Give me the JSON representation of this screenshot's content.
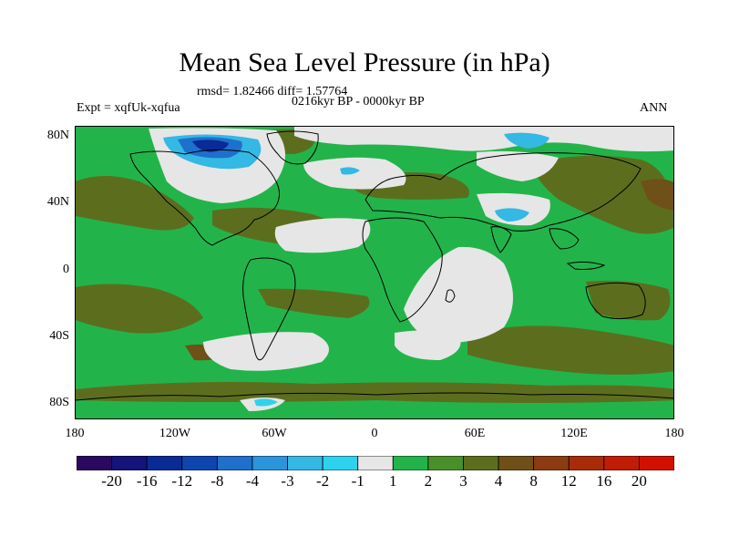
{
  "title": "Mean Sea Level Pressure (in hPa)",
  "stats": "rmsd= 1.82466 diff= 1.57764",
  "expt": "Expt = xqfUk-xqfua",
  "period": "0216kyr BP - 0000kyr BP",
  "season": "ANN",
  "lat_labels": [
    "80N",
    "40N",
    "0",
    "40S",
    "80S"
  ],
  "lon_labels": [
    "180",
    "120W",
    "60W",
    "0",
    "60E",
    "120E",
    "180"
  ],
  "colorbar": {
    "labels": [
      "-20",
      "-16",
      "-12",
      "-8",
      "-4",
      "-3",
      "-2",
      "-1",
      "1",
      "2",
      "3",
      "4",
      "8",
      "12",
      "16",
      "20"
    ],
    "colors": [
      "#2a0a5e",
      "#14147a",
      "#0a2a96",
      "#0f45b0",
      "#1f6fcc",
      "#2a94dc",
      "#34b8e4",
      "#2fd2ee",
      "#e6e6e6",
      "#22b44a",
      "#4a8f2a",
      "#5c6e1e",
      "#6e5018",
      "#8c3c10",
      "#a82c0a",
      "#c01c06",
      "#d21000"
    ]
  },
  "map_colors": {
    "green": "#22b44a",
    "light_green": "#5ebf4e",
    "white": "#e6e6e6",
    "olive": "#5c6e1e",
    "cyan": "#34b8e4",
    "blue": "#1f6fcc",
    "navy": "#0a2a96",
    "coast": "#000000"
  }
}
